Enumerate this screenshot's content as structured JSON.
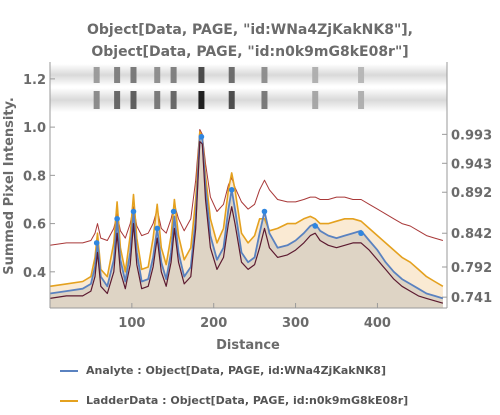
{
  "chart_data": {
    "type": "area",
    "title_lines": [
      "Object[Data, PAGE, \"id:WNa4ZjKakNK8\"],",
      "Object[Data, PAGE, \"id:n0k9mG8kE08r\"]"
    ],
    "xlabel": "Distance",
    "ylabel": "Summed Pixel Intensity.",
    "xlim": [
      0,
      485
    ],
    "ylim": [
      0.25,
      1.27
    ],
    "x_ticks": [
      100,
      200,
      300,
      400
    ],
    "y_ticks": [
      0.4,
      0.6,
      0.8,
      1.0,
      1.2
    ],
    "right_ticks": [
      "0.993",
      "0.943",
      "0.892",
      "0.842",
      "0.792",
      "0.741"
    ],
    "right_tick_y": [
      0.97,
      0.85,
      0.73,
      0.56,
      0.42,
      0.295
    ],
    "gel_band_x": [
      57,
      82,
      102,
      131,
      151,
      185,
      222,
      262,
      324,
      380
    ],
    "gel_band_strength": [
      0.35,
      0.55,
      0.6,
      0.45,
      0.55,
      0.95,
      0.7,
      0.45,
      0.2,
      0.15
    ],
    "series": [
      {
        "name": "Analyte : Object[Data, PAGE, id:WNa4ZjKakNK8]",
        "color": "#5a82c0",
        "x": [
          0,
          20,
          40,
          50,
          55,
          58,
          62,
          70,
          78,
          82,
          86,
          92,
          98,
          102,
          106,
          112,
          120,
          126,
          131,
          136,
          142,
          148,
          152,
          157,
          164,
          172,
          178,
          183,
          186,
          190,
          196,
          204,
          212,
          218,
          222,
          226,
          234,
          242,
          250,
          256,
          262,
          268,
          278,
          290,
          300,
          310,
          318,
          324,
          330,
          340,
          350,
          360,
          370,
          380,
          390,
          400,
          410,
          420,
          430,
          440,
          450,
          460,
          470,
          480
        ],
        "y": [
          0.31,
          0.32,
          0.33,
          0.35,
          0.42,
          0.52,
          0.38,
          0.34,
          0.45,
          0.62,
          0.45,
          0.36,
          0.48,
          0.65,
          0.48,
          0.36,
          0.37,
          0.46,
          0.58,
          0.44,
          0.37,
          0.48,
          0.63,
          0.48,
          0.38,
          0.42,
          0.62,
          0.96,
          0.95,
          0.75,
          0.55,
          0.45,
          0.5,
          0.66,
          0.74,
          0.66,
          0.48,
          0.44,
          0.46,
          0.56,
          0.65,
          0.56,
          0.5,
          0.51,
          0.53,
          0.56,
          0.59,
          0.6,
          0.57,
          0.55,
          0.54,
          0.55,
          0.56,
          0.57,
          0.53,
          0.49,
          0.44,
          0.4,
          0.37,
          0.35,
          0.33,
          0.31,
          0.3,
          0.29
        ]
      },
      {
        "name": "LadderData : Object[Data, PAGE, id:n0k9mG8kE08r]",
        "color": "#e4a11f",
        "x": [
          0,
          20,
          40,
          50,
          55,
          58,
          62,
          70,
          78,
          82,
          86,
          92,
          98,
          102,
          106,
          112,
          120,
          126,
          131,
          136,
          142,
          148,
          152,
          157,
          164,
          172,
          178,
          183,
          186,
          190,
          196,
          204,
          212,
          218,
          222,
          226,
          234,
          242,
          250,
          256,
          262,
          268,
          278,
          290,
          300,
          310,
          318,
          324,
          330,
          340,
          350,
          360,
          370,
          380,
          390,
          400,
          410,
          420,
          430,
          440,
          450,
          460,
          470,
          480
        ],
        "y": [
          0.34,
          0.35,
          0.36,
          0.38,
          0.46,
          0.56,
          0.41,
          0.38,
          0.52,
          0.69,
          0.5,
          0.4,
          0.55,
          0.72,
          0.54,
          0.41,
          0.42,
          0.54,
          0.68,
          0.5,
          0.43,
          0.55,
          0.7,
          0.55,
          0.45,
          0.5,
          0.7,
          0.98,
          0.96,
          0.8,
          0.62,
          0.52,
          0.58,
          0.74,
          0.81,
          0.74,
          0.56,
          0.52,
          0.55,
          0.62,
          0.62,
          0.57,
          0.58,
          0.6,
          0.6,
          0.62,
          0.63,
          0.62,
          0.6,
          0.6,
          0.61,
          0.62,
          0.62,
          0.61,
          0.58,
          0.55,
          0.52,
          0.49,
          0.46,
          0.44,
          0.41,
          0.38,
          0.36,
          0.34
        ]
      },
      {
        "name": "",
        "color": "#a83838",
        "x": [
          0,
          20,
          40,
          50,
          55,
          58,
          62,
          70,
          78,
          82,
          86,
          92,
          98,
          102,
          106,
          112,
          120,
          126,
          131,
          136,
          142,
          148,
          152,
          157,
          164,
          172,
          178,
          183,
          186,
          190,
          196,
          204,
          212,
          218,
          222,
          226,
          234,
          242,
          250,
          256,
          262,
          268,
          278,
          290,
          300,
          310,
          318,
          324,
          330,
          340,
          350,
          360,
          370,
          380,
          390,
          400,
          410,
          420,
          430,
          440,
          450,
          460,
          470,
          480
        ],
        "y": [
          0.51,
          0.52,
          0.52,
          0.53,
          0.56,
          0.6,
          0.54,
          0.53,
          0.58,
          0.64,
          0.57,
          0.54,
          0.6,
          0.67,
          0.59,
          0.55,
          0.56,
          0.6,
          0.66,
          0.58,
          0.56,
          0.62,
          0.68,
          0.62,
          0.57,
          0.62,
          0.78,
          0.99,
          0.97,
          0.85,
          0.71,
          0.65,
          0.68,
          0.76,
          0.79,
          0.75,
          0.69,
          0.66,
          0.68,
          0.74,
          0.78,
          0.74,
          0.7,
          0.69,
          0.69,
          0.7,
          0.71,
          0.71,
          0.7,
          0.7,
          0.71,
          0.71,
          0.7,
          0.7,
          0.68,
          0.66,
          0.64,
          0.62,
          0.6,
          0.59,
          0.57,
          0.55,
          0.54,
          0.53
        ]
      },
      {
        "name": "",
        "color": "#5c1a30",
        "x": [
          0,
          20,
          40,
          50,
          55,
          58,
          62,
          70,
          78,
          82,
          86,
          92,
          98,
          102,
          106,
          112,
          120,
          126,
          131,
          136,
          142,
          148,
          152,
          157,
          164,
          172,
          178,
          183,
          186,
          190,
          196,
          204,
          212,
          218,
          222,
          226,
          234,
          242,
          250,
          256,
          262,
          268,
          278,
          290,
          300,
          310,
          318,
          324,
          330,
          340,
          350,
          360,
          370,
          380,
          390,
          400,
          410,
          420,
          430,
          440,
          450,
          460,
          470,
          480
        ],
        "y": [
          0.29,
          0.3,
          0.3,
          0.32,
          0.38,
          0.48,
          0.34,
          0.31,
          0.4,
          0.56,
          0.4,
          0.33,
          0.43,
          0.6,
          0.43,
          0.33,
          0.34,
          0.42,
          0.54,
          0.4,
          0.34,
          0.44,
          0.58,
          0.44,
          0.35,
          0.38,
          0.58,
          0.94,
          0.93,
          0.7,
          0.5,
          0.41,
          0.46,
          0.6,
          0.67,
          0.6,
          0.44,
          0.41,
          0.43,
          0.5,
          0.58,
          0.5,
          0.46,
          0.47,
          0.49,
          0.52,
          0.55,
          0.56,
          0.53,
          0.51,
          0.5,
          0.51,
          0.52,
          0.52,
          0.49,
          0.45,
          0.41,
          0.37,
          0.34,
          0.32,
          0.3,
          0.29,
          0.28,
          0.27
        ]
      }
    ],
    "peak_markers": {
      "color": "#2f86e0",
      "x": [
        57,
        82,
        102,
        131,
        151,
        185,
        222,
        262,
        324,
        380
      ],
      "y": [
        0.52,
        0.62,
        0.65,
        0.58,
        0.65,
        0.96,
        0.74,
        0.65,
        0.59,
        0.56
      ]
    },
    "legend": [
      {
        "label": "Analyte : Object[Data, PAGE, id:WNa4ZjKakNK8]",
        "color": "#5a82c0"
      },
      {
        "label": "LadderData : Object[Data, PAGE, id:n0k9mG8kE08r]",
        "color": "#e4a11f"
      }
    ]
  }
}
